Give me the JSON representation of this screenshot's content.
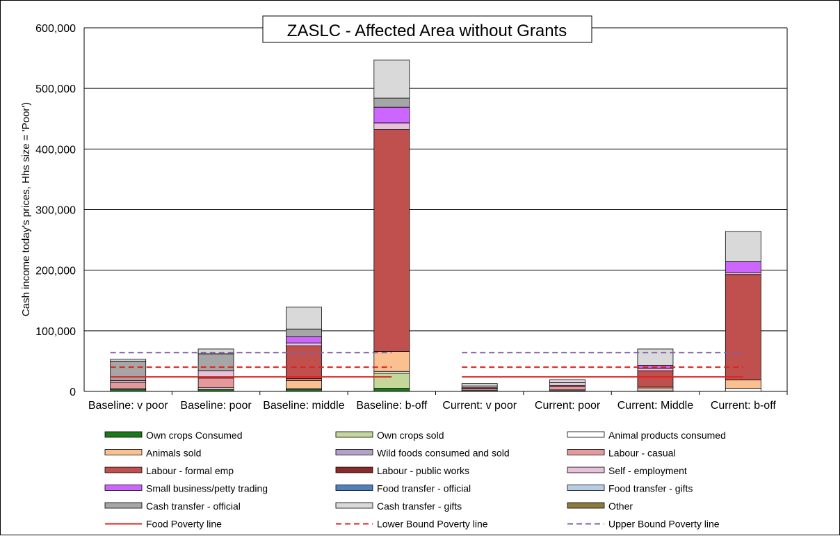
{
  "chart_data": {
    "type": "bar",
    "stacked": true,
    "title": "ZASLC - Affected Area without Grants",
    "xlabel": "",
    "ylabel": "Cash income today's prices, Hhs size = 'Poor')",
    "ylim": [
      0,
      600000
    ],
    "yticks": [
      "0",
      "100,000",
      "200,000",
      "300,000",
      "400,000",
      "500,000",
      "600,000"
    ],
    "ytick_values": [
      0,
      100000,
      200000,
      300000,
      400000,
      500000,
      600000
    ],
    "grid": true,
    "legend_position": "bottom",
    "categories": [
      "Baseline: v poor",
      "Baseline: poor",
      "Baseline: middle",
      "Baseline: b-off",
      "Current: v poor",
      "Current: poor",
      "Current: Middle",
      "Current: b-off"
    ],
    "series": [
      {
        "name": "Own crops Consumed",
        "color": "#1a7a1a",
        "values": [
          3000,
          3000,
          3000,
          5000,
          500,
          1000,
          1000,
          0
        ]
      },
      {
        "name": "Own crops sold",
        "color": "#c4d79b",
        "values": [
          0,
          0,
          0,
          25000,
          0,
          0,
          0,
          0
        ]
      },
      {
        "name": "Animal products consumed",
        "color": "#ffffff",
        "values": [
          2000,
          3000,
          2000,
          3000,
          1500,
          1500,
          3000,
          5000
        ]
      },
      {
        "name": "Animals sold",
        "color": "#fac090",
        "values": [
          0,
          0,
          13000,
          33000,
          0,
          0,
          3000,
          14000
        ]
      },
      {
        "name": "Wild foods consumed and sold",
        "color": "#b3a2c7",
        "values": [
          0,
          0,
          0,
          0,
          0,
          0,
          0,
          0
        ]
      },
      {
        "name": "Labour - casual",
        "color": "#e6999c",
        "values": [
          10000,
          16000,
          3000,
          0,
          3000,
          6000,
          0,
          0
        ]
      },
      {
        "name": "Labour - formal emp",
        "color": "#c0504d",
        "values": [
          0,
          0,
          54000,
          366000,
          0,
          0,
          27000,
          174000
        ]
      },
      {
        "name": "Labour - public works",
        "color": "#8b2a2a",
        "values": [
          0,
          0,
          0,
          0,
          1000,
          1000,
          0,
          0
        ]
      },
      {
        "name": "Self - employment",
        "color": "#e6c1d9",
        "values": [
          3000,
          12000,
          5000,
          11000,
          3000,
          5000,
          4000,
          3000
        ]
      },
      {
        "name": "Small business/petty trading",
        "color": "#cc66ff",
        "values": [
          0,
          0,
          10000,
          26000,
          0,
          0,
          5000,
          18000
        ]
      },
      {
        "name": "Food transfer - official",
        "color": "#4f81bd",
        "values": [
          0,
          0,
          0,
          0,
          0,
          0,
          0,
          0
        ]
      },
      {
        "name": "Food transfer - gifts",
        "color": "#b7cde3",
        "values": [
          0,
          0,
          0,
          0,
          0,
          0,
          0,
          0
        ]
      },
      {
        "name": "Cash transfer - official",
        "color": "#a6a6a6",
        "values": [
          32000,
          28000,
          13000,
          15000,
          0,
          0,
          0,
          0
        ]
      },
      {
        "name": "Cash transfer - gifts",
        "color": "#d9d9d9",
        "values": [
          3000,
          8000,
          36000,
          63000,
          4000,
          5000,
          27000,
          50000
        ]
      },
      {
        "name": "Other",
        "color": "#8c7a3c",
        "values": [
          0,
          0,
          0,
          0,
          0,
          0,
          0,
          0
        ]
      }
    ],
    "lines": [
      {
        "name": "Food Poverty line",
        "color": "#e02020",
        "style": "solid",
        "value": 24000
      },
      {
        "name": "Lower Bound Poverty line",
        "color": "#e02020",
        "style": "dashed",
        "value": 40000
      },
      {
        "name": "Upper Bound Poverty line",
        "color": "#7f5fa8",
        "style": "dashed",
        "value": 64000
      }
    ]
  }
}
